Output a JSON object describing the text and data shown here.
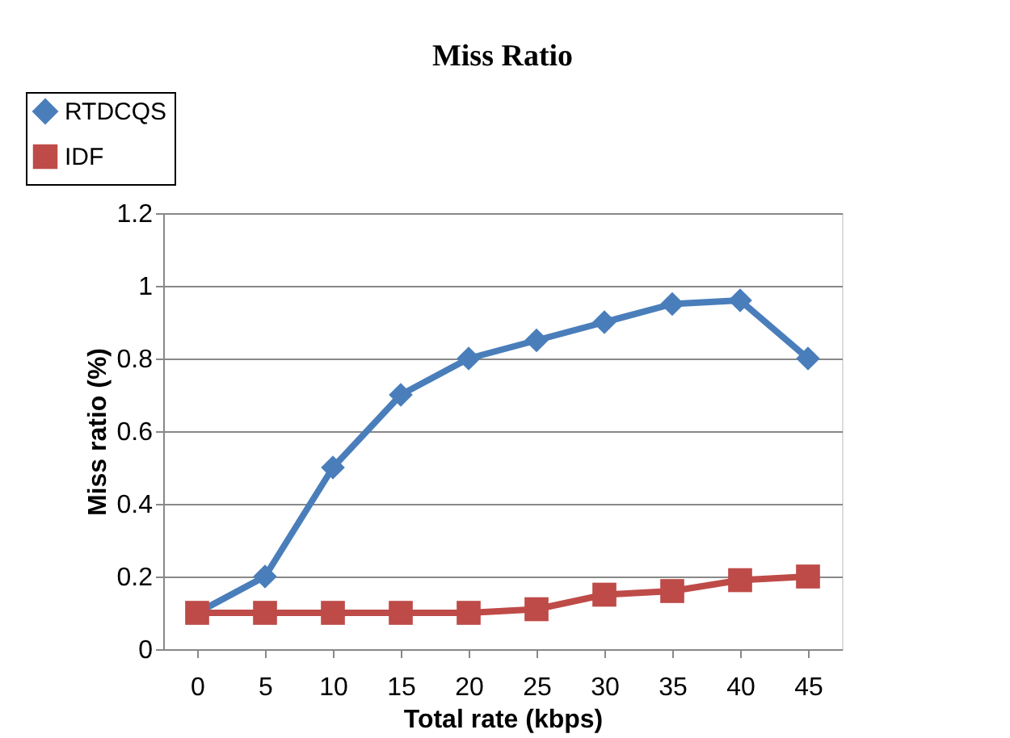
{
  "chart_data": {
    "type": "line",
    "title": "Miss Ratio",
    "xlabel": "Total rate (kbps)",
    "ylabel": "Miss ratio (%)",
    "categories": [
      "0",
      "5",
      "10",
      "15",
      "20",
      "25",
      "30",
      "35",
      "40",
      "45"
    ],
    "series": [
      {
        "name": "RTDCQS",
        "color": "#4a7ebb",
        "marker": "diamond",
        "values": [
          0.1,
          0.2,
          0.5,
          0.7,
          0.8,
          0.85,
          0.9,
          0.95,
          0.96,
          0.8
        ]
      },
      {
        "name": "IDF",
        "color": "#be4b48",
        "marker": "square",
        "values": [
          0.1,
          0.1,
          0.1,
          0.1,
          0.1,
          0.11,
          0.15,
          0.16,
          0.19,
          0.2
        ]
      }
    ],
    "ylim": [
      0,
      1.2
    ],
    "yticks": [
      0,
      0.2,
      0.4,
      0.6,
      0.8,
      1,
      1.2
    ],
    "grid": "y",
    "legend": "top left",
    "line_style": "solid"
  }
}
